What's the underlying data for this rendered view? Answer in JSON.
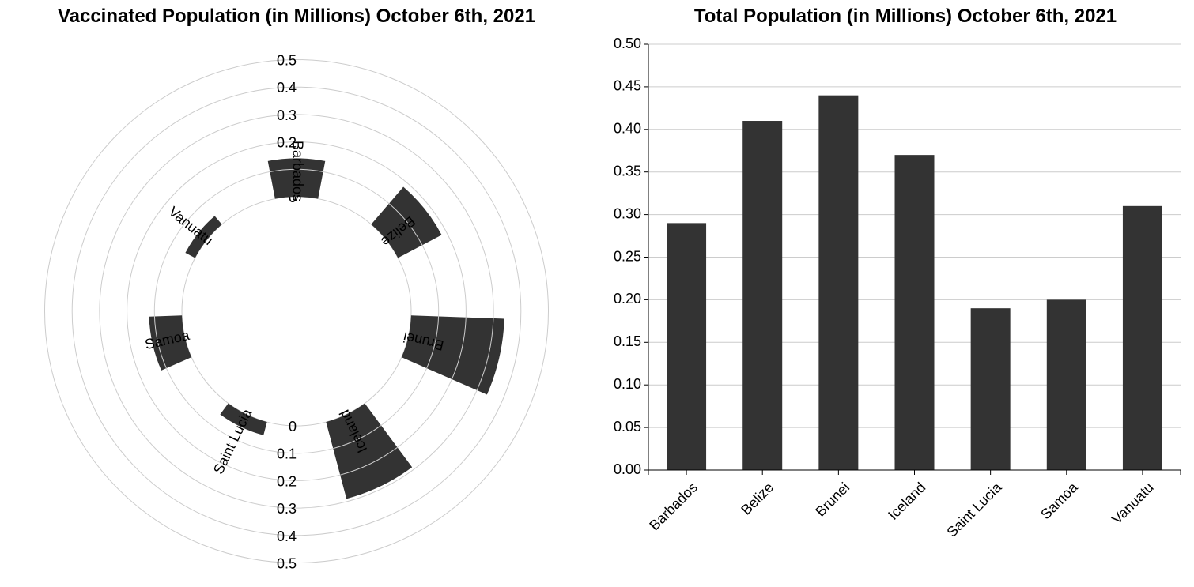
{
  "chart_data": [
    {
      "type": "radial-bar",
      "title": "Vaccinated Population (in Millions) October 6th, 2021",
      "categories": [
        "Barbados",
        "Belize",
        "Brunei",
        "Iceland",
        "Saint Lucia",
        "Samoa",
        "Vanuatu"
      ],
      "values": [
        0.14,
        0.18,
        0.34,
        0.29,
        0.05,
        0.12,
        0.04
      ],
      "ylim": [
        0,
        0.5
      ],
      "ticks": [
        "0",
        "0.1",
        "0.2",
        "0.3",
        "0.4",
        "0.5"
      ],
      "grid": true,
      "bar_color": "#333333",
      "grid_color": "#cccccc"
    },
    {
      "type": "bar",
      "title": "Total Population (in Millions) October 6th, 2021",
      "categories": [
        "Barbados",
        "Belize",
        "Brunei",
        "Iceland",
        "Saint Lucia",
        "Samoa",
        "Vanuatu"
      ],
      "values": [
        0.29,
        0.41,
        0.44,
        0.37,
        0.19,
        0.2,
        0.31
      ],
      "ylim": [
        0,
        0.5
      ],
      "ticks": [
        "0.00",
        "0.05",
        "0.10",
        "0.15",
        "0.20",
        "0.25",
        "0.30",
        "0.35",
        "0.40",
        "0.45",
        "0.50"
      ],
      "xlabel": "",
      "ylabel": "",
      "grid": true,
      "bar_color": "#333333",
      "grid_color": "#cccccc"
    }
  ]
}
